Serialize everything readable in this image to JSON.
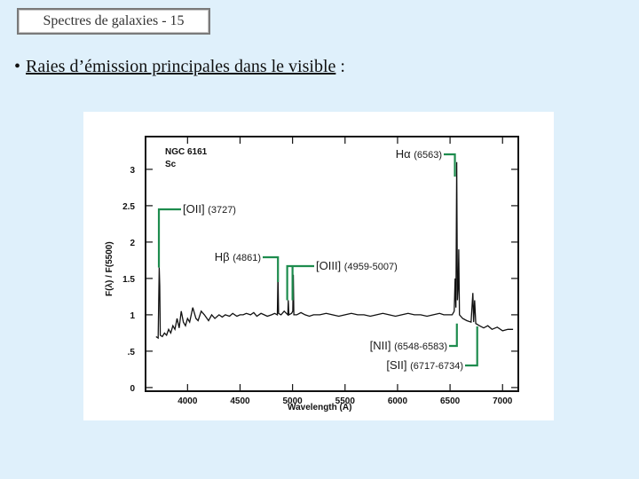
{
  "slide": {
    "title": "Spectres de galaxies - 15",
    "bullet": "•",
    "heading_main": "Raies d’émission principales dans le visible",
    "heading_tail": " :"
  },
  "colors": {
    "background": "#dff0fb",
    "annotation_line": "#1e8c4e",
    "spectrum": "#111111"
  },
  "chart_data": {
    "type": "line",
    "object": "NGC 6161",
    "morph_type": "Sc",
    "xlabel": "Wavelength   (A)",
    "ylabel": "F(λ) / F(5500)",
    "xlim": [
      3600,
      7150
    ],
    "ylim": [
      -0.05,
      3.45
    ],
    "x_ticks": [
      4000,
      4500,
      5000,
      5500,
      6000,
      6500,
      7000
    ],
    "y_ticks": [
      0,
      0.5,
      1,
      1.5,
      2,
      2.5,
      3
    ],
    "y_tick_labels": [
      "0",
      ".5",
      "1",
      "1.5",
      "2",
      "2.5",
      "3"
    ],
    "series": [
      {
        "x": [
          3700,
          3720,
          3730,
          3735,
          3740,
          3760,
          3780,
          3800,
          3820,
          3840,
          3860,
          3880,
          3900,
          3920,
          3940,
          3960,
          3980,
          4000,
          4020,
          4050,
          4080,
          4100,
          4130,
          4160,
          4200,
          4230,
          4260,
          4300,
          4330,
          4360,
          4400,
          4430,
          4470,
          4500,
          4530,
          4560,
          4600,
          4630,
          4660,
          4700,
          4730,
          4760,
          4800,
          4830,
          4855,
          4861,
          4867,
          4890,
          4920,
          4955,
          4959,
          4965,
          4990,
          5002,
          5007,
          5012,
          5040,
          5080,
          5120,
          5160,
          5200,
          5260,
          5320,
          5380,
          5440,
          5500,
          5560,
          5620,
          5680,
          5740,
          5800,
          5860,
          5920,
          5980,
          6040,
          6100,
          6160,
          6220,
          6280,
          6340,
          6400,
          6440,
          6480,
          6520,
          6540,
          6548,
          6556,
          6563,
          6570,
          6578,
          6583,
          6590,
          6620,
          6660,
          6700,
          6717,
          6725,
          6734,
          6745,
          6780,
          6820,
          6860,
          6900,
          6950,
          7000,
          7050,
          7100
        ],
        "y": [
          0.7,
          0.68,
          1.65,
          1.4,
          0.72,
          0.7,
          0.75,
          0.72,
          0.8,
          0.75,
          0.85,
          0.8,
          0.95,
          0.82,
          1.05,
          0.9,
          0.85,
          0.95,
          0.9,
          1.1,
          0.95,
          0.92,
          1.05,
          1.0,
          0.92,
          1.0,
          0.95,
          1.0,
          0.97,
          1.0,
          0.98,
          1.02,
          0.98,
          1.0,
          1.0,
          1.02,
          1.0,
          1.03,
          0.98,
          1.02,
          1.0,
          0.98,
          1.0,
          1.02,
          1.0,
          1.55,
          1.02,
          1.0,
          1.05,
          1.0,
          1.2,
          1.0,
          1.02,
          1.05,
          1.55,
          1.0,
          1.0,
          1.03,
          1.0,
          0.98,
          1.0,
          1.0,
          1.02,
          1.0,
          0.98,
          1.0,
          1.02,
          1.0,
          1.0,
          0.98,
          1.0,
          1.02,
          1.0,
          0.98,
          1.0,
          1.02,
          1.0,
          1.0,
          0.98,
          1.0,
          1.02,
          1.0,
          1.0,
          1.0,
          1.05,
          1.5,
          1.1,
          3.1,
          1.2,
          1.4,
          1.9,
          1.0,
          0.95,
          0.92,
          0.9,
          1.3,
          0.9,
          1.2,
          0.88,
          0.85,
          0.82,
          0.85,
          0.8,
          0.83,
          0.78,
          0.8,
          0.8
        ]
      }
    ],
    "annotations": [
      {
        "name": "Hα",
        "range": "(6563)",
        "x_line": 6563
      },
      {
        "name": "[OII]",
        "range": "(3727)",
        "x_line": 3727
      },
      {
        "name": "Hβ",
        "range": "(4861)",
        "x_line": 4861
      },
      {
        "name": "[OIII]",
        "range": "(4959-5007)",
        "x_line": 4983
      },
      {
        "name": "[NII]",
        "range": "(6548-6583)",
        "x_line": 6565
      },
      {
        "name": "[SII]",
        "range": "(6717-6734)",
        "x_line": 6725
      }
    ]
  }
}
